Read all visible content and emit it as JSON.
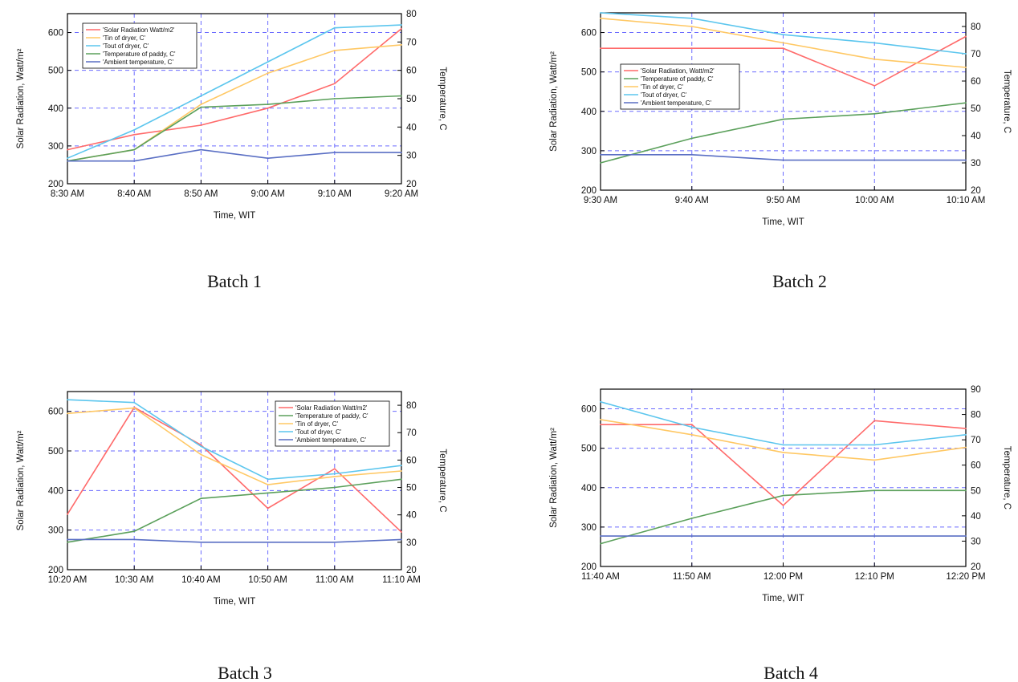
{
  "series_colors": {
    "solar": "#ff6a6a",
    "paddy": "#5ba05b",
    "tin": "#ffc864",
    "tout": "#5cc6ee",
    "ambient": "#5a6fc4"
  },
  "chart_data": [
    {
      "type": "line",
      "caption": "Batch 1",
      "xlabel": "Time, WIT",
      "ylabel": "Solar Radiation, Watt/m²",
      "ylabel_right": "Temperature, C",
      "x": [
        "8:30 AM",
        "8:40 AM",
        "8:50 AM",
        "9:00 AM",
        "9:10 AM",
        "9:20 AM"
      ],
      "ylim": [
        200,
        650
      ],
      "yticks": [
        200,
        300,
        400,
        500,
        600
      ],
      "ylim_right": [
        20,
        80
      ],
      "yticks_right": [
        20,
        30,
        40,
        50,
        60,
        70,
        80
      ],
      "grid": true,
      "legend_position": "top-left",
      "series": [
        {
          "key": "solar",
          "name": "'Solar Radiation Watt/m2'",
          "axis": "left",
          "values": [
            290,
            330,
            355,
            400,
            465,
            610
          ]
        },
        {
          "key": "tin",
          "name": "'Tin of dryer, C'",
          "axis": "right",
          "values": [
            28,
            32,
            48,
            59,
            67,
            69
          ]
        },
        {
          "key": "tout",
          "name": "'Tout of dryer, C'",
          "axis": "right",
          "values": [
            29,
            39,
            51,
            63,
            75,
            76
          ]
        },
        {
          "key": "paddy",
          "name": "'Temperature of paddy, C'",
          "axis": "right",
          "values": [
            28,
            32,
            47,
            48,
            50,
            51
          ]
        },
        {
          "key": "ambient",
          "name": "'Ambient temperature, C'",
          "axis": "right",
          "values": [
            28,
            28,
            32,
            29,
            31,
            31
          ]
        }
      ]
    },
    {
      "type": "line",
      "caption": "Batch 2",
      "xlabel": "Time, WIT",
      "ylabel": "Solar Radiation, Watt/m²",
      "ylabel_right": "Temperature, C",
      "x": [
        "9:30 AM",
        "9:40 AM",
        "9:50 AM",
        "10:00 AM",
        "10:10 AM"
      ],
      "ylim": [
        200,
        650
      ],
      "yticks": [
        200,
        300,
        400,
        500,
        600
      ],
      "ylim_right": [
        20,
        85
      ],
      "yticks_right": [
        20,
        30,
        40,
        50,
        60,
        70,
        80
      ],
      "grid": true,
      "legend_position": "middle-left",
      "series": [
        {
          "key": "solar",
          "name": "'Solar Radiation, Watt/m2'",
          "axis": "left",
          "values": [
            560,
            560,
            560,
            465,
            590
          ]
        },
        {
          "key": "paddy",
          "name": "'Temperature of paddy, C'",
          "axis": "right",
          "values": [
            30,
            39,
            46,
            48,
            52
          ]
        },
        {
          "key": "tin",
          "name": "'Tin of dryer, C'",
          "axis": "right",
          "values": [
            83,
            80,
            74,
            68,
            65
          ]
        },
        {
          "key": "tout",
          "name": "'Tout of dryer, C'",
          "axis": "right",
          "values": [
            85,
            83,
            77,
            74,
            70
          ]
        },
        {
          "key": "ambient",
          "name": "'Ambient temperature, C'",
          "axis": "right",
          "values": [
            33,
            33,
            31,
            31,
            31
          ]
        }
      ]
    },
    {
      "type": "line",
      "caption": "Batch 3",
      "xlabel": "Time, WIT",
      "ylabel": "Solar Radiation, Watt/m²",
      "ylabel_right": "Temperature, C",
      "x": [
        "10:20 AM",
        "10:30 AM",
        "10:40 AM",
        "10:50 AM",
        "11:00 AM",
        "11:10 AM"
      ],
      "ylim": [
        200,
        650
      ],
      "yticks": [
        200,
        300,
        400,
        500,
        600
      ],
      "ylim_right": [
        20,
        85
      ],
      "yticks_right": [
        20,
        30,
        40,
        50,
        60,
        70,
        80
      ],
      "grid": true,
      "legend_position": "top-right",
      "series": [
        {
          "key": "solar",
          "name": "'Solar Radiation Watt/m2'",
          "axis": "left",
          "values": [
            340,
            610,
            515,
            355,
            455,
            295
          ]
        },
        {
          "key": "paddy",
          "name": "'Temperature of paddy, C'",
          "axis": "right",
          "values": [
            30,
            34,
            46,
            48,
            50,
            53
          ]
        },
        {
          "key": "tin",
          "name": "'Tin of dryer, C'",
          "axis": "right",
          "values": [
            77,
            79,
            62,
            51,
            54,
            56
          ]
        },
        {
          "key": "tout",
          "name": "'Tout of dryer, C'",
          "axis": "right",
          "values": [
            82,
            81,
            65,
            53,
            55,
            58
          ]
        },
        {
          "key": "ambient",
          "name": "'Ambient temperature, C'",
          "axis": "right",
          "values": [
            31,
            31,
            30,
            30,
            30,
            31
          ]
        }
      ]
    },
    {
      "type": "line",
      "caption": "Batch 4",
      "xlabel": "Time, WIT",
      "ylabel": "Solar Radiation, Watt/m²",
      "ylabel_right": "Temperature, C",
      "x": [
        "11:40 AM",
        "11:50 AM",
        "12:00 PM",
        "12:10 PM",
        "12:20 PM"
      ],
      "ylim": [
        200,
        650
      ],
      "yticks": [
        200,
        300,
        400,
        500,
        600
      ],
      "ylim_right": [
        20,
        90
      ],
      "yticks_right": [
        20,
        30,
        40,
        50,
        60,
        70,
        80,
        90
      ],
      "grid": true,
      "legend_position": "none",
      "series": [
        {
          "key": "solar",
          "name": "",
          "axis": "left",
          "values": [
            560,
            560,
            355,
            570,
            550
          ]
        },
        {
          "key": "paddy",
          "name": "",
          "axis": "right",
          "values": [
            29,
            39,
            48,
            50,
            50
          ]
        },
        {
          "key": "tin",
          "name": "",
          "axis": "right",
          "values": [
            78,
            72,
            65,
            62,
            67
          ]
        },
        {
          "key": "tout",
          "name": "",
          "axis": "right",
          "values": [
            85,
            75,
            68,
            68,
            72
          ]
        },
        {
          "key": "ambient",
          "name": "",
          "axis": "right",
          "values": [
            32,
            32,
            32,
            32,
            32
          ]
        }
      ]
    }
  ]
}
